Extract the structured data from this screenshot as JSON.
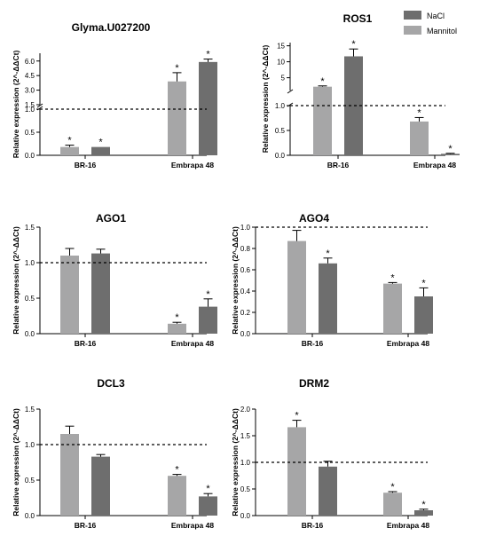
{
  "legend": {
    "placement": "top-right",
    "entries": [
      {
        "name": "NaCl",
        "color": "#6e6e6e"
      },
      {
        "name": "Mannitol",
        "color": "#a6a6a7"
      }
    ]
  },
  "chart_data": [
    {
      "type": "bar",
      "title": "Glyma.U027200",
      "ylabel": "Relative expression (2^-ΔΔCt)",
      "categories": [
        "BR-16",
        "Embrapa 48"
      ],
      "axis_break": true,
      "ylim_lower": [
        0,
        1.0
      ],
      "yticks_lower": [
        "0.0",
        "0.5",
        "1.0"
      ],
      "ylim_upper": [
        1.5,
        6.8
      ],
      "yticks_upper": [
        "1.5",
        "3.0",
        "4.5",
        "6.0"
      ],
      "reference_line": 1.0,
      "series": [
        {
          "color": "#a6a6a7",
          "values": [
            0.18,
            3.9
          ],
          "errors": [
            0.04,
            0.9
          ],
          "significant": [
            true,
            true
          ]
        },
        {
          "color": "#6e6e6e",
          "values": [
            0.18,
            5.9
          ],
          "errors": [
            0.0,
            0.3
          ],
          "significant": [
            true,
            true
          ]
        }
      ]
    },
    {
      "type": "bar",
      "title": "ROS1",
      "ylabel": "Relative expression (2^-ΔΔCt)",
      "categories": [
        "BR-16",
        "Embrapa 48"
      ],
      "axis_break": true,
      "ylim_lower": [
        0,
        1.0
      ],
      "yticks_lower": [
        "0.0",
        "0.5",
        "1.0"
      ],
      "ylim_upper": [
        1.0,
        16
      ],
      "yticks_upper": [
        "5",
        "10",
        "15"
      ],
      "reference_line": 1.0,
      "series": [
        {
          "color": "#a6a6a7",
          "values": [
            2.2,
            0.68
          ],
          "errors": [
            0.25,
            0.08
          ],
          "significant": [
            true,
            true
          ]
        },
        {
          "color": "#6e6e6e",
          "values": [
            11.7,
            0.03
          ],
          "errors": [
            2.3,
            0.01
          ],
          "significant": [
            true,
            true
          ]
        }
      ]
    },
    {
      "type": "bar",
      "title": "AGO1",
      "ylabel": "Relative expression (2^-ΔΔCt)",
      "categories": [
        "BR-16",
        "Embrapa 48"
      ],
      "ylim": [
        0,
        1.5
      ],
      "yticks": [
        "0.0",
        "0.5",
        "1.0",
        "1.5"
      ],
      "reference_line": 1.0,
      "series": [
        {
          "color": "#a6a6a7",
          "values": [
            1.1,
            0.14
          ],
          "errors": [
            0.1,
            0.02
          ],
          "significant": [
            false,
            true
          ]
        },
        {
          "color": "#6e6e6e",
          "values": [
            1.13,
            0.38
          ],
          "errors": [
            0.06,
            0.11
          ],
          "significant": [
            false,
            true
          ]
        }
      ]
    },
    {
      "type": "bar",
      "title": "AGO4",
      "ylabel": "Relative expression (2^-ΔΔCt)",
      "categories": [
        "BR-16",
        "Embrapa 48"
      ],
      "ylim": [
        0,
        1.0
      ],
      "yticks": [
        "0.0",
        "0.2",
        "0.4",
        "0.6",
        "0.8",
        "1.0"
      ],
      "reference_line": 1.0,
      "series": [
        {
          "color": "#a6a6a7",
          "values": [
            0.87,
            0.47
          ],
          "errors": [
            0.1,
            0.01
          ],
          "significant": [
            false,
            true
          ]
        },
        {
          "color": "#6e6e6e",
          "values": [
            0.66,
            0.35
          ],
          "errors": [
            0.05,
            0.08
          ],
          "significant": [
            true,
            true
          ]
        }
      ]
    },
    {
      "type": "bar",
      "title": "DCL3",
      "ylabel": "Relative expression (2^-ΔΔCt)",
      "categories": [
        "BR-16",
        "Embrapa 48"
      ],
      "ylim": [
        0,
        1.5
      ],
      "yticks": [
        "0.0",
        "0.5",
        "1.0",
        "1.5"
      ],
      "reference_line": 1.0,
      "series": [
        {
          "color": "#a6a6a7",
          "values": [
            1.15,
            0.56
          ],
          "errors": [
            0.11,
            0.02
          ],
          "significant": [
            false,
            true
          ]
        },
        {
          "color": "#6e6e6e",
          "values": [
            0.83,
            0.27
          ],
          "errors": [
            0.03,
            0.04
          ],
          "significant": [
            false,
            true
          ]
        }
      ]
    },
    {
      "type": "bar",
      "title": "DRM2",
      "ylabel": "Relative expression (2^-ΔΔCt)",
      "categories": [
        "BR-16",
        "Embrapa 48"
      ],
      "ylim": [
        0,
        2.0
      ],
      "yticks": [
        "0.0",
        "0.5",
        "1.0",
        "1.5",
        "2.0"
      ],
      "reference_line": 1.0,
      "series": [
        {
          "color": "#a6a6a7",
          "values": [
            1.66,
            0.43
          ],
          "errors": [
            0.13,
            0.02
          ],
          "significant": [
            true,
            true
          ]
        },
        {
          "color": "#6e6e6e",
          "values": [
            0.92,
            0.1
          ],
          "errors": [
            0.1,
            0.02
          ],
          "significant": [
            false,
            true
          ]
        }
      ]
    }
  ]
}
